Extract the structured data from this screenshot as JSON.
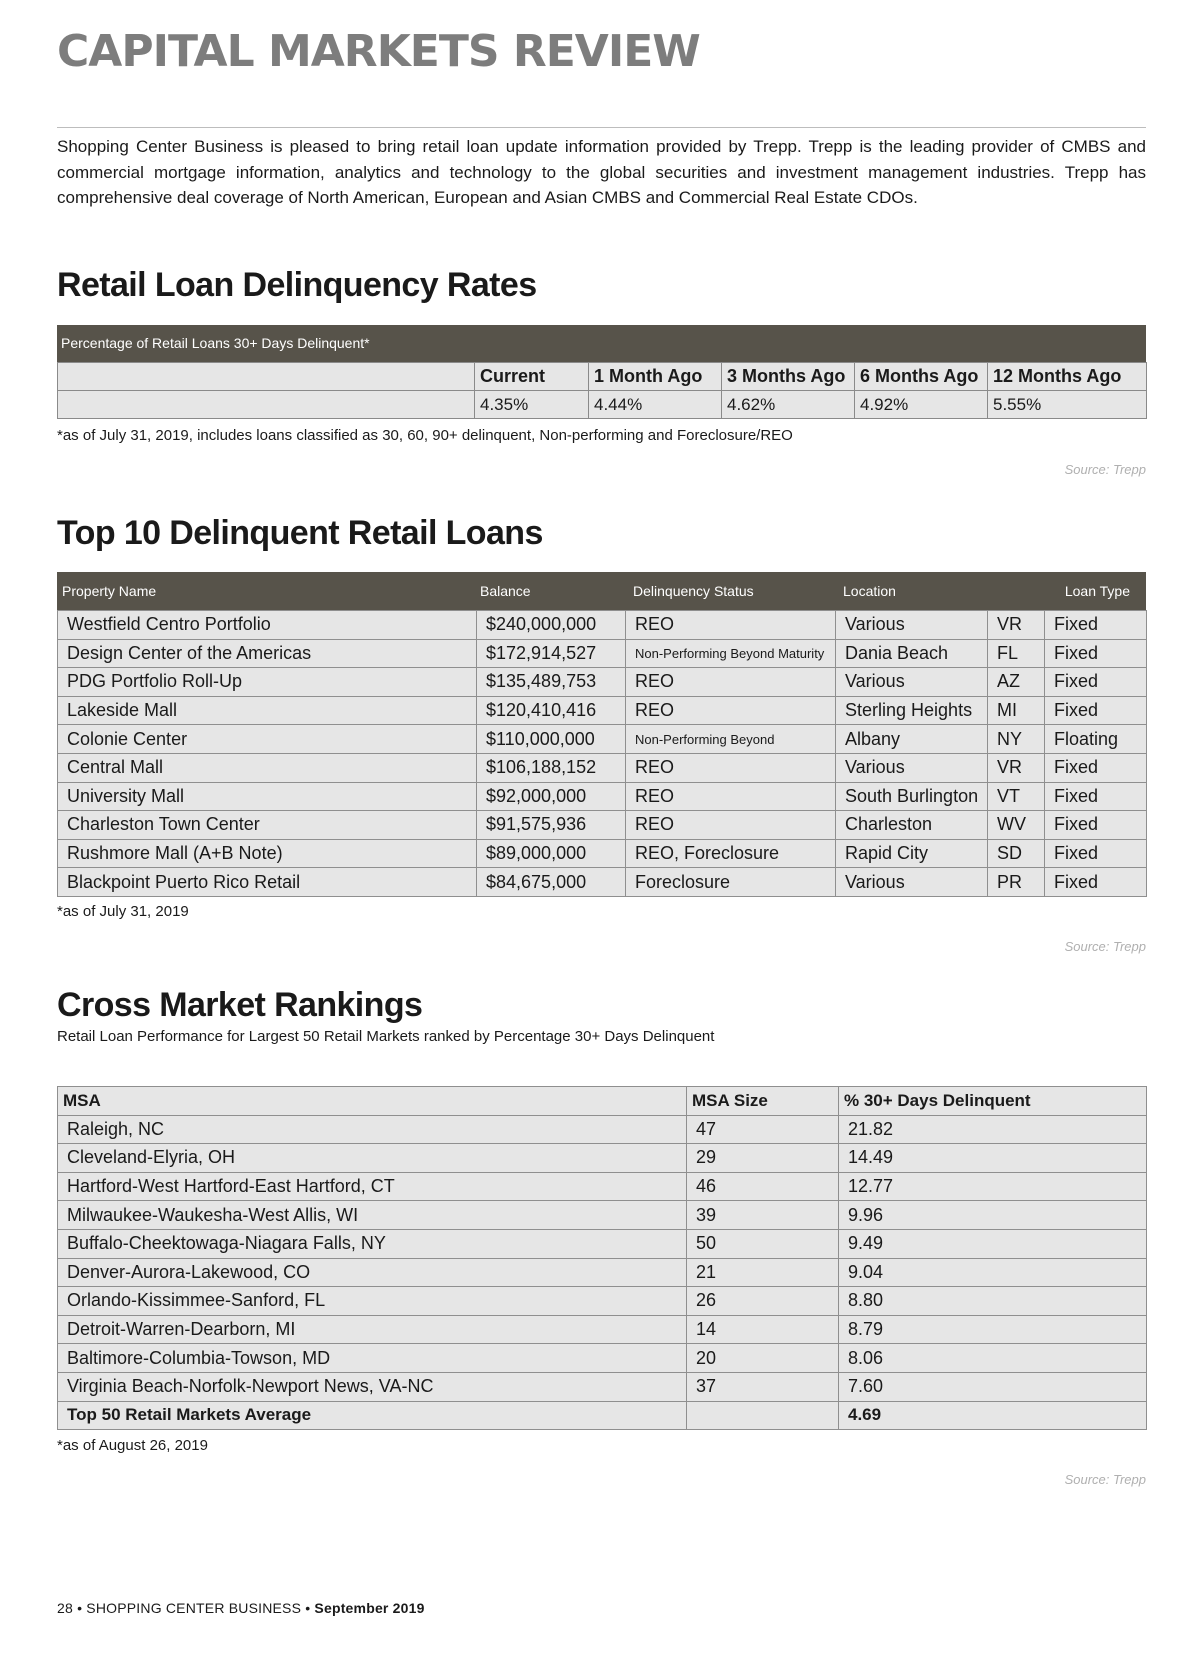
{
  "masthead": "CAPITAL MARKETS REVIEW",
  "intro": "Shopping Center Business is pleased to bring retail loan update information provided by Trepp. Trepp is the leading provider of CMBS and commercial mortgage information, analytics and technology to the global securities and investment management industries. Trepp has comprehensive deal coverage of North American, European and Asian CMBS and Commercial Real Estate CDOs.",
  "delinquency": {
    "heading": "Retail Loan Delinquency Rates",
    "bar_label": "Percentage of Retail Loans 30+ Days Delinquent*",
    "columns": [
      "Current",
      "1 Month Ago",
      "3 Months Ago",
      "6 Months Ago",
      "12 Months Ago"
    ],
    "values": [
      "4.35%",
      "4.44%",
      "4.62%",
      "4.92%",
      "5.55%"
    ],
    "note": "*as of July 31, 2019,  includes loans classified as 30, 60, 90+ delinquent, Non-performing and Foreclosure/REO",
    "source": "Source: Trepp"
  },
  "top10": {
    "heading": "Top 10 Delinquent Retail Loans",
    "columns": [
      "Property Name",
      "Balance",
      "Delinquency Status",
      "Location",
      "Loan Type"
    ],
    "rows": [
      [
        "Westfield Centro Portfolio",
        "$240,000,000",
        "REO",
        "Various",
        "VR",
        "Fixed"
      ],
      [
        "Design Center of the Americas",
        "$172,914,527",
        "Non-Performing Beyond Maturity",
        "Dania Beach",
        "FL",
        "Fixed"
      ],
      [
        "PDG Portfolio Roll-Up",
        "$135,489,753",
        "REO",
        "Various",
        "AZ",
        "Fixed"
      ],
      [
        "Lakeside Mall",
        "$120,410,416",
        "REO",
        "Sterling Heights",
        "MI",
        "Fixed"
      ],
      [
        "Colonie Center",
        "$110,000,000",
        "Non-Performing Beyond",
        "Albany",
        "NY",
        "Floating"
      ],
      [
        "Central Mall",
        "$106,188,152",
        "REO",
        "Various",
        "VR",
        "Fixed"
      ],
      [
        "University Mall",
        "$92,000,000",
        "REO",
        "South Burlington",
        "VT",
        "Fixed"
      ],
      [
        "Charleston Town Center",
        "$91,575,936",
        "REO",
        "Charleston",
        "WV",
        "Fixed"
      ],
      [
        "Rushmore Mall (A+B Note)",
        "$89,000,000",
        "REO, Foreclosure",
        "Rapid City",
        "SD",
        "Fixed"
      ],
      [
        "Blackpoint Puerto Rico Retail",
        "$84,675,000",
        "Foreclosure",
        "Various",
        "PR",
        "Fixed"
      ]
    ],
    "note": "*as of July 31, 2019",
    "source": "Source: Trepp"
  },
  "cross": {
    "heading": "Cross Market Rankings",
    "subheading": "Retail Loan Performance for Largest 50 Retail Markets ranked by Percentage 30+ Days Delinquent",
    "columns": [
      "MSA",
      "MSA Size",
      "% 30+ Days Delinquent"
    ],
    "rows": [
      [
        "Raleigh, NC",
        "47",
        "21.82"
      ],
      [
        "Cleveland-Elyria, OH",
        "29",
        "14.49"
      ],
      [
        "Hartford-West Hartford-East Hartford, CT",
        "46",
        "12.77"
      ],
      [
        "Milwaukee-Waukesha-West Allis, WI",
        "39",
        "9.96"
      ],
      [
        "Buffalo-Cheektowaga-Niagara Falls, NY",
        "50",
        "9.49"
      ],
      [
        "Denver-Aurora-Lakewood, CO",
        "21",
        "9.04"
      ],
      [
        "Orlando-Kissimmee-Sanford, FL",
        "26",
        "8.80"
      ],
      [
        "Detroit-Warren-Dearborn, MI",
        "14",
        "8.79"
      ],
      [
        "Baltimore-Columbia-Towson, MD",
        "20",
        "8.06"
      ],
      [
        "Virginia Beach-Norfolk-Newport News, VA-NC",
        "37",
        "7.60"
      ]
    ],
    "average": {
      "label": "Top 50 Retail Markets Average",
      "size": "",
      "value": "4.69"
    },
    "note": "*as of August 26, 2019",
    "source": "Source: Trepp"
  },
  "footer": {
    "page": "28",
    "publication": "SHOPPING CENTER BUSINESS",
    "issue": "September 2019",
    "separator": "•"
  }
}
